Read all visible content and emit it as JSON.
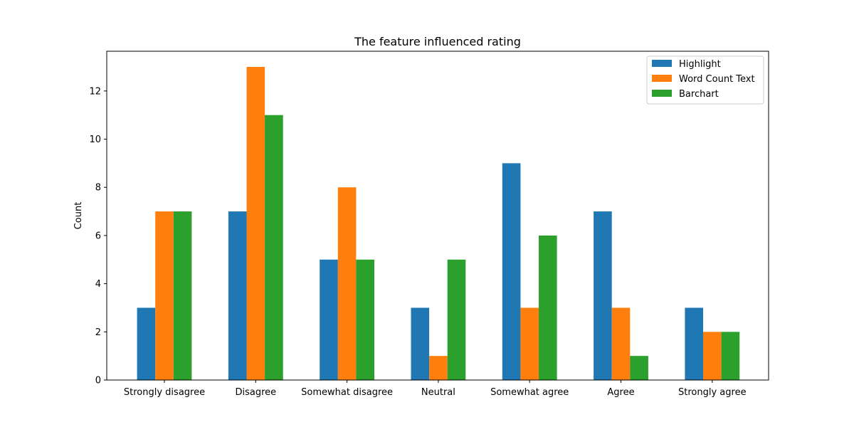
{
  "chart_data": {
    "type": "bar",
    "title": "The feature influenced rating",
    "xlabel": "",
    "ylabel": "Count",
    "categories": [
      "Strongly disagree",
      "Disagree",
      "Somewhat disagree",
      "Neutral",
      "Somewhat agree",
      "Agree",
      "Strongly agree"
    ],
    "series": [
      {
        "name": "Highlight",
        "color": "#1f77b4",
        "values": [
          3,
          7,
          5,
          3,
          9,
          7,
          3
        ]
      },
      {
        "name": "Word Count Text",
        "color": "#ff7f0e",
        "values": [
          7,
          13,
          8,
          1,
          3,
          3,
          2
        ]
      },
      {
        "name": "Barchart",
        "color": "#2ca02c",
        "values": [
          7,
          11,
          5,
          5,
          6,
          1,
          2
        ]
      }
    ],
    "ylim": [
      0,
      13.65
    ],
    "yticks": [
      0,
      2,
      4,
      6,
      8,
      10,
      12
    ],
    "grid": false,
    "legend_position": "top-right"
  }
}
